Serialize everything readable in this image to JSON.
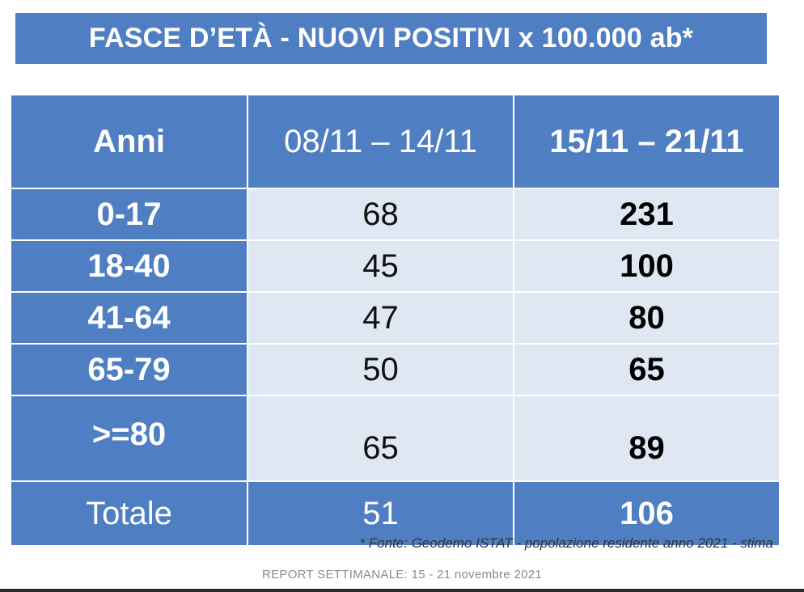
{
  "title": "FASCE D’ETÀ - NUOVI POSITIVI x 100.000 ab*",
  "table": {
    "headers": [
      "Anni",
      "08/11 – 14/11",
      "15/11 – 21/11"
    ],
    "rows": [
      {
        "age": "0-17",
        "week1": "68",
        "week2": "231"
      },
      {
        "age": "18-40",
        "week1": "45",
        "week2": "100"
      },
      {
        "age": "41-64",
        "week1": "47",
        "week2": "80"
      },
      {
        "age": "65-79",
        "week1": "50",
        "week2": "65"
      },
      {
        "age": ">=80",
        "week1": "65",
        "week2": "89"
      }
    ],
    "total": {
      "label": "Totale",
      "week1": "51",
      "week2": "106"
    }
  },
  "footnote": "* Fonte: Geodemo ISTAT - popolazione residente anno 2021 - stima",
  "footer": "REPORT SETTIMANALE: 15 - 21 novembre 2021",
  "colors": {
    "header_blue": "#4f7fc2",
    "cell_light": "#dfe7f3",
    "text_white": "#ffffff"
  }
}
